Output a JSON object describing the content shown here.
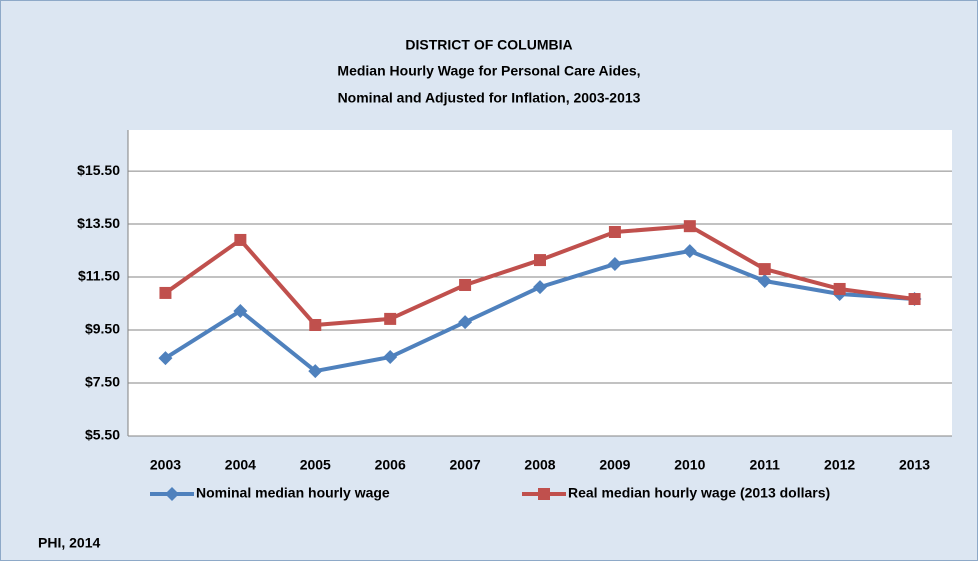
{
  "chart_data": {
    "type": "line",
    "title": [
      "DISTRICT OF COLUMBIA",
      "Median Hourly Wage for Personal Care Aides,",
      "Nominal and Adjusted for Inflation, 2003-2013"
    ],
    "categories": [
      "2003",
      "2004",
      "2005",
      "2006",
      "2007",
      "2008",
      "2009",
      "2010",
      "2011",
      "2012",
      "2013"
    ],
    "series": [
      {
        "name": "Nominal median hourly wage",
        "color": "#4f81bd",
        "marker": "diamond",
        "values": [
          8.44,
          10.22,
          7.95,
          8.48,
          9.8,
          11.12,
          11.99,
          12.48,
          11.35,
          10.86,
          10.67
        ]
      },
      {
        "name": "Real median hourly wage (2013 dollars)",
        "color": "#c0504d",
        "marker": "square",
        "values": [
          10.9,
          12.9,
          9.69,
          9.92,
          11.2,
          12.14,
          13.2,
          13.42,
          11.8,
          11.05,
          10.67
        ]
      }
    ],
    "ylim": [
      5.5,
      17.05
    ],
    "yticks": [
      {
        "value": 5.5,
        "label": "$5.50"
      },
      {
        "value": 7.5,
        "label": "$7.50"
      },
      {
        "value": 9.5,
        "label": "$9.50"
      },
      {
        "value": 11.5,
        "label": "$11.50"
      },
      {
        "value": 13.5,
        "label": "$13.50"
      },
      {
        "value": 15.5,
        "label": "$15.50"
      }
    ],
    "grid": true,
    "legend": "bottom",
    "source": "PHI, 2014"
  }
}
